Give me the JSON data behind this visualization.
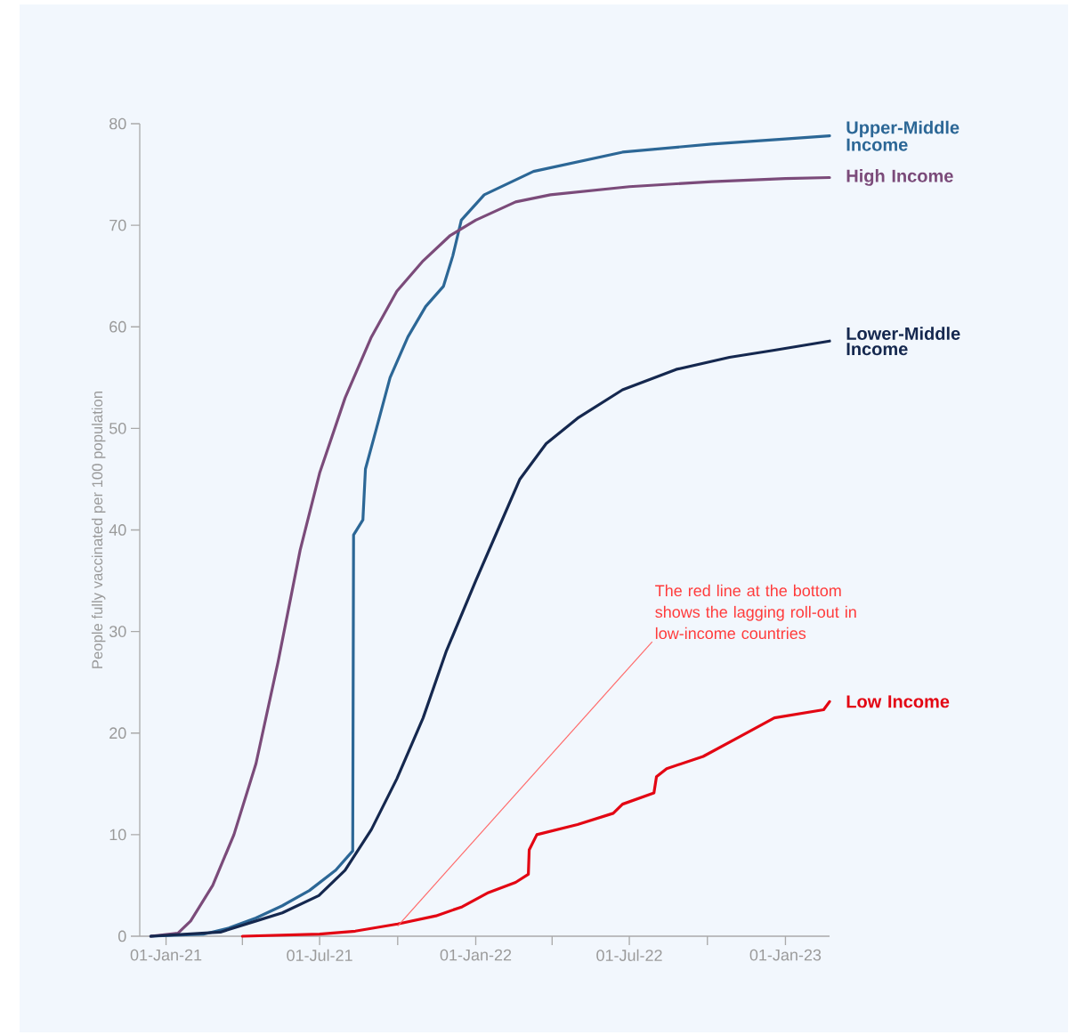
{
  "chart_data": {
    "type": "line",
    "ylabel": "People fully vaccinated per 100 population",
    "xlim": [
      "2020-12-01",
      "2023-02-22"
    ],
    "xticks": [
      {
        "value": "2021-01-01",
        "label": "01-Jan-21"
      },
      {
        "value": "2021-04-01",
        "label": null
      },
      {
        "value": "2021-07-01",
        "label": "01-Jul-21"
      },
      {
        "value": "2021-10-01",
        "label": null
      },
      {
        "value": "2022-01-01",
        "label": "01-Jan-22"
      },
      {
        "value": "2022-04-01",
        "label": null
      },
      {
        "value": "2022-07-01",
        "label": "01-Jul-22"
      },
      {
        "value": "2022-10-01",
        "label": null
      },
      {
        "value": "2023-01-01",
        "label": "01-Jan-23"
      }
    ],
    "ylim": [
      0,
      80
    ],
    "yticks": [
      0,
      10,
      20,
      30,
      40,
      50,
      60,
      70,
      80
    ],
    "grid": false,
    "marker": "none",
    "line_style": "solid",
    "annotations": [
      {
        "text": "The red line at the bottom shows the lagging roll-out in low-income countries",
        "x": "2021-10-01",
        "y": 1
      }
    ],
    "series": [
      {
        "name": "Upper-Middle Income",
        "color": "#2c6796",
        "x": [
          "2020-12-14",
          "2021-02-14",
          "2021-03-16",
          "2021-04-17",
          "2021-05-18",
          "2021-06-19",
          "2021-07-20",
          "2021-08-09",
          "2021-08-10",
          "2021-08-21",
          "2021-08-24",
          "2021-09-06",
          "2021-09-22",
          "2021-10-13",
          "2021-11-03",
          "2021-11-24",
          "2021-12-05",
          "2021-12-15",
          "2022-01-11",
          "2022-03-10",
          "2022-06-23",
          "2022-10-06",
          "2023-01-01",
          "2023-02-22"
        ],
        "values": [
          0,
          0.2,
          0.8,
          1.8,
          3,
          4.5,
          6.5,
          8.4,
          39.5,
          41,
          46,
          50,
          55,
          59,
          62,
          64,
          67,
          70.5,
          73,
          75.3,
          77.2,
          78,
          78.5,
          78.8
        ]
      },
      {
        "name": "High Income",
        "color": "#7b4b7a",
        "x": [
          "2020-12-14",
          "2021-01-15",
          "2021-01-30",
          "2021-02-25",
          "2021-03-22",
          "2021-04-17",
          "2021-05-13",
          "2021-06-08",
          "2021-07-01",
          "2021-07-31",
          "2021-08-31",
          "2021-09-30",
          "2021-10-31",
          "2021-12-02",
          "2022-01-01",
          "2022-02-17",
          "2022-03-30",
          "2022-07-01",
          "2022-10-06",
          "2023-01-01",
          "2023-02-22"
        ],
        "values": [
          0,
          0.3,
          1.5,
          5,
          10,
          17,
          27,
          38,
          45.6,
          53,
          59,
          63.5,
          66.5,
          69,
          70.5,
          72.3,
          73,
          73.8,
          74.3,
          74.6,
          74.7
        ]
      },
      {
        "name": "Lower-Middle Income",
        "color": "#15284f",
        "x": [
          "2020-12-14",
          "2021-03-06",
          "2021-04-17",
          "2021-05-18",
          "2021-06-30",
          "2021-07-31",
          "2021-08-31",
          "2021-09-30",
          "2021-10-31",
          "2021-11-27",
          "2022-01-01",
          "2022-01-27",
          "2022-02-22",
          "2022-03-25",
          "2022-05-01",
          "2022-06-23",
          "2022-08-25",
          "2022-10-27",
          "2022-12-19",
          "2023-02-22"
        ],
        "values": [
          0,
          0.4,
          1.5,
          2.3,
          4,
          6.5,
          10.5,
          15.5,
          21.5,
          28,
          35,
          40,
          45,
          48.5,
          51,
          53.8,
          55.8,
          57,
          57.7,
          58.6
        ]
      },
      {
        "name": "Low Income",
        "color": "#e30613",
        "x": [
          "2021-04-01",
          "2021-07-01",
          "2021-08-12",
          "2021-10-01",
          "2021-11-15",
          "2021-12-16",
          "2022-01-16",
          "2022-02-17",
          "2022-03-04",
          "2022-03-05",
          "2022-03-14",
          "2022-05-01",
          "2022-06-12",
          "2022-06-23",
          "2022-07-30",
          "2022-08-02",
          "2022-08-14",
          "2022-09-26",
          "2022-11-07",
          "2022-12-19",
          "2023-02-15",
          "2023-02-22"
        ],
        "values": [
          0,
          0.2,
          0.5,
          1.2,
          2,
          2.9,
          4.3,
          5.3,
          6.1,
          8.5,
          10,
          11,
          12.1,
          13,
          14.1,
          15.7,
          16.5,
          17.7,
          19.6,
          21.5,
          22.3,
          23.1
        ]
      }
    ]
  }
}
